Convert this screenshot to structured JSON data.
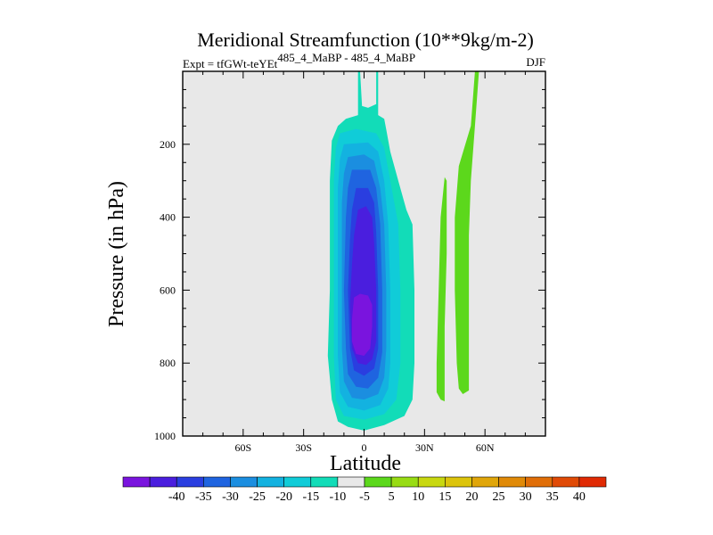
{
  "chart_data": {
    "type": "contour",
    "title": "Meridional Streamfunction (10**9kg/m-2)",
    "subtitle_left_prefix": "Expt = tfGWt-teYEt",
    "subtitle_left_super": "485_4_MaBP - 485_4_MaBP",
    "subtitle_right": "DJF",
    "xlabel": "Latitude",
    "ylabel": "Pressure (in hPa)",
    "xlim": [
      -90,
      90
    ],
    "ylim": [
      1000,
      0
    ],
    "x_ticks": [
      {
        "value": -60,
        "label": "60S"
      },
      {
        "value": -30,
        "label": "30S"
      },
      {
        "value": 0,
        "label": "0"
      },
      {
        "value": 30,
        "label": "30N"
      },
      {
        "value": 60,
        "label": "60N"
      }
    ],
    "y_ticks": [
      {
        "value": 200,
        "label": "200"
      },
      {
        "value": 400,
        "label": "400"
      },
      {
        "value": 600,
        "label": "600"
      },
      {
        "value": 800,
        "label": "800"
      },
      {
        "value": 1000,
        "label": "1000"
      }
    ],
    "colorbar": {
      "colors": [
        "#7a14de",
        "#4a1ede",
        "#2a3ee0",
        "#1f64e0",
        "#1b8ee0",
        "#13b2e0",
        "#10ccd8",
        "#12dcb8",
        "#e8e8e8",
        "#5cd81c",
        "#98dc14",
        "#c8d810",
        "#dcc40c",
        "#e0a60a",
        "#e08a08",
        "#e06e08",
        "#e04a06",
        "#e02a04"
      ],
      "labels": [
        "-40",
        "-35",
        "-30",
        "-25",
        "-20",
        "-15",
        "-10",
        "-5",
        "5",
        "10",
        "15",
        "20",
        "25",
        "30",
        "35",
        "40"
      ]
    },
    "regions": [
      {
        "name": "negative-cell-outer",
        "level": -5,
        "color": "#12dcb8",
        "polygon": [
          [
            -3,
            0
          ],
          [
            -3,
            120
          ],
          [
            -9,
            130
          ],
          [
            -13,
            150
          ],
          [
            -16,
            190
          ],
          [
            -17,
            300
          ],
          [
            -17,
            600
          ],
          [
            -18,
            780
          ],
          [
            -16,
            900
          ],
          [
            -13,
            960
          ],
          [
            -8,
            975
          ],
          [
            0,
            985
          ],
          [
            10,
            970
          ],
          [
            20,
            945
          ],
          [
            24,
            900
          ],
          [
            25,
            800
          ],
          [
            25,
            600
          ],
          [
            24,
            420
          ],
          [
            21,
            380
          ],
          [
            17,
            300
          ],
          [
            13,
            220
          ],
          [
            11,
            160
          ],
          [
            10,
            130
          ],
          [
            7,
            120
          ],
          [
            7,
            0
          ],
          [
            6,
            0
          ],
          [
            6,
            90
          ],
          [
            2,
            100
          ],
          [
            -1,
            95
          ],
          [
            -2,
            0
          ]
        ]
      },
      {
        "name": "negative-cell-10",
        "level": -10,
        "color": "#10ccd8",
        "polygon": [
          [
            -12,
            170
          ],
          [
            -14,
            210
          ],
          [
            -15,
            300
          ],
          [
            -15,
            600
          ],
          [
            -15,
            780
          ],
          [
            -14,
            900
          ],
          [
            -10,
            945
          ],
          [
            0,
            955
          ],
          [
            10,
            940
          ],
          [
            16,
            900
          ],
          [
            18,
            800
          ],
          [
            18,
            600
          ],
          [
            17,
            420
          ],
          [
            13,
            300
          ],
          [
            10,
            210
          ],
          [
            6,
            170
          ],
          [
            -4,
            158
          ]
        ]
      },
      {
        "name": "negative-cell-15",
        "level": -15,
        "color": "#13b2e0",
        "polygon": [
          [
            -10,
            200
          ],
          [
            -12,
            240
          ],
          [
            -13,
            320
          ],
          [
            -13,
            600
          ],
          [
            -13,
            780
          ],
          [
            -12,
            880
          ],
          [
            -8,
            920
          ],
          [
            0,
            930
          ],
          [
            8,
            915
          ],
          [
            12,
            870
          ],
          [
            13,
            800
          ],
          [
            13,
            600
          ],
          [
            12,
            420
          ],
          [
            10,
            300
          ],
          [
            7,
            220
          ],
          [
            2,
            195
          ]
        ]
      },
      {
        "name": "negative-cell-20",
        "level": -20,
        "color": "#1b8ee0",
        "polygon": [
          [
            -8,
            235
          ],
          [
            -10,
            280
          ],
          [
            -11,
            360
          ],
          [
            -11,
            600
          ],
          [
            -11,
            760
          ],
          [
            -10,
            850
          ],
          [
            -6,
            895
          ],
          [
            0,
            900
          ],
          [
            7,
            885
          ],
          [
            10,
            840
          ],
          [
            11,
            760
          ],
          [
            11,
            600
          ],
          [
            10,
            420
          ],
          [
            8,
            320
          ],
          [
            5,
            245
          ],
          [
            0,
            228
          ]
        ]
      },
      {
        "name": "negative-cell-25",
        "level": -25,
        "color": "#1f64e0",
        "polygon": [
          [
            -6,
            270
          ],
          [
            -8,
            320
          ],
          [
            -9,
            400
          ],
          [
            -10,
            600
          ],
          [
            -9,
            760
          ],
          [
            -8,
            830
          ],
          [
            -4,
            865
          ],
          [
            2,
            870
          ],
          [
            7,
            840
          ],
          [
            9,
            770
          ],
          [
            9,
            600
          ],
          [
            8,
            420
          ],
          [
            6,
            320
          ],
          [
            3,
            270
          ]
        ]
      },
      {
        "name": "negative-cell-30",
        "level": -30,
        "color": "#2a3ee0",
        "polygon": [
          [
            -4,
            320
          ],
          [
            -6,
            380
          ],
          [
            -7,
            460
          ],
          [
            -8,
            600
          ],
          [
            -7,
            760
          ],
          [
            -5,
            820
          ],
          [
            0,
            835
          ],
          [
            5,
            815
          ],
          [
            7,
            760
          ],
          [
            7,
            600
          ],
          [
            6,
            440
          ],
          [
            5,
            360
          ],
          [
            2,
            320
          ]
        ]
      },
      {
        "name": "negative-cell-35",
        "level": -35,
        "color": "#4a1ede",
        "polygon": [
          [
            -3,
            380
          ],
          [
            -5,
            450
          ],
          [
            -6,
            530
          ],
          [
            -7,
            640
          ],
          [
            -6,
            760
          ],
          [
            -3,
            800
          ],
          [
            1,
            805
          ],
          [
            4,
            790
          ],
          [
            6,
            740
          ],
          [
            6,
            600
          ],
          [
            5,
            470
          ],
          [
            4,
            400
          ],
          [
            1,
            370
          ]
        ]
      },
      {
        "name": "negative-cell-40",
        "level": -40,
        "color": "#7a14de",
        "polygon": [
          [
            -5,
            620
          ],
          [
            -6,
            680
          ],
          [
            -6,
            740
          ],
          [
            -4,
            775
          ],
          [
            0,
            780
          ],
          [
            3,
            760
          ],
          [
            4,
            700
          ],
          [
            4,
            640
          ],
          [
            2,
            615
          ],
          [
            -2,
            610
          ]
        ]
      },
      {
        "name": "positive-strip-narrow",
        "level": 10,
        "color": "#5cd81c",
        "polygon": [
          [
            40,
            290
          ],
          [
            38,
            400
          ],
          [
            37,
            600
          ],
          [
            36,
            800
          ],
          [
            36,
            880
          ],
          [
            38,
            900
          ],
          [
            40,
            905
          ],
          [
            40,
            850
          ],
          [
            40,
            700
          ],
          [
            41,
            500
          ],
          [
            41,
            400
          ],
          [
            41,
            300
          ]
        ]
      },
      {
        "name": "positive-strip-wide",
        "level": 10,
        "color": "#5cd81c",
        "polygon": [
          [
            55,
            0
          ],
          [
            53,
            150
          ],
          [
            47,
            260
          ],
          [
            45,
            400
          ],
          [
            45,
            600
          ],
          [
            46,
            800
          ],
          [
            47,
            870
          ],
          [
            49,
            885
          ],
          [
            52,
            875
          ],
          [
            52,
            800
          ],
          [
            52,
            600
          ],
          [
            52,
            450
          ],
          [
            53,
            300
          ],
          [
            55,
            150
          ],
          [
            57,
            0
          ]
        ]
      }
    ]
  }
}
